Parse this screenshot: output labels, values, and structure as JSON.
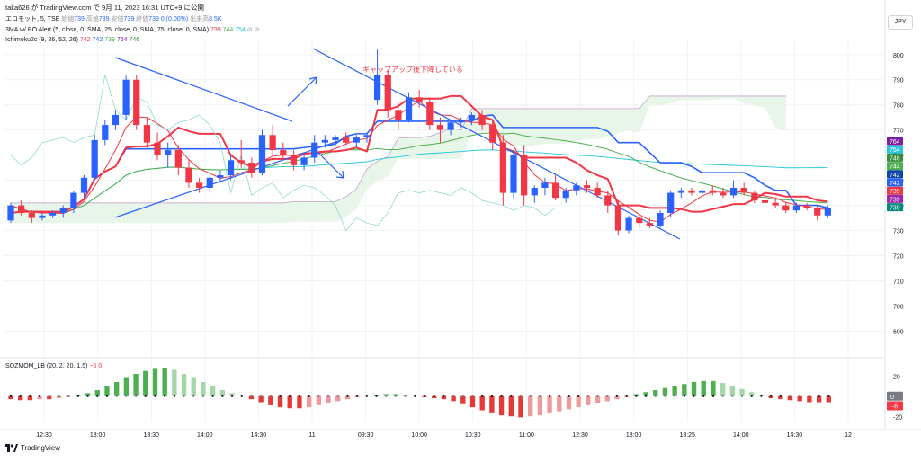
{
  "header": {
    "publish_line": "taka626 が TradingView.com で 9月 11, 2023 16:31 UTC+9 に公開",
    "currency": "JPY"
  },
  "legend": {
    "symbol_line": {
      "name": "エコモット, 5, TSE",
      "open_label": "始値",
      "open": "739",
      "high_label": "高値",
      "high": "739",
      "low_label": "安値",
      "low": "739",
      "close_label": "終値",
      "close": "739",
      "change": "0 (0.00%)",
      "volume_label": "出来高",
      "volume": "8.5K"
    },
    "ma_line": {
      "name": "3MA w/ PO Alert (5, close, 0, SMA, 25, close, 0, SMA, 75, close, 0, SMA)",
      "v1": "739",
      "v2": "744",
      "v3": "754",
      "icons": "⊘ ⊘"
    },
    "ichimoku_line": {
      "name": "Ichimoku2c (9, 26, 52, 26)",
      "v1": "742",
      "v2": "742",
      "v3": "739",
      "v4": "764",
      "v5": "746"
    },
    "sqz_line": {
      "name": "SQZMOM_LB (20, 2, 20, 1.5)",
      "v1": "−6",
      "v2": "0"
    }
  },
  "footer": {
    "brand": "TradingView"
  },
  "colors": {
    "up": "#2962ff",
    "down": "#f23645",
    "ma5": "#f23645",
    "ma25": "#4caf50",
    "ma75": "#26c6da",
    "tenkan": "#f23645",
    "kijun": "#2962ff",
    "chikou": "#4caf50",
    "cloud": "#e8f5e9",
    "mom_up_strong": "#4caf50",
    "mom_up_weak": "#a5d6a7",
    "mom_dn_strong": "#e53935",
    "mom_dn_weak": "#ef9a9a"
  },
  "chart_data": [
    {
      "type": "candlestick",
      "title": "エコモット, 5, TSE",
      "y_axis_ticks": [
        690,
        700,
        710,
        720,
        730,
        740,
        750,
        760,
        770,
        780,
        790,
        800
      ],
      "ylim": [
        683,
        806
      ],
      "x_ticks": [
        "12:30",
        "13:00",
        "13:30",
        "14:00",
        "14:30",
        "11",
        "09:30",
        "10:00",
        "10:30",
        "11:00",
        "12:30",
        "13:00",
        "13:25",
        "14:00",
        "14:30",
        "12"
      ],
      "annotation": "ギャップアップ後下降している",
      "price_labels": [
        {
          "value": "764",
          "color": "#7b1fa2"
        },
        {
          "value": "754",
          "color": "#26c6da"
        },
        {
          "value": "746",
          "color": "#388e3c"
        },
        {
          "value": "744",
          "color": "#4caf50"
        },
        {
          "value": "742",
          "color": "#0d47a1"
        },
        {
          "value": "742",
          "color": "#2962ff"
        },
        {
          "value": "739",
          "color": "#f23645"
        },
        {
          "value": "739",
          "color": "#9c27b0"
        },
        {
          "value": "739",
          "color": "#00897b"
        }
      ],
      "candles": [
        [
          734,
          741,
          733,
          740
        ],
        [
          740,
          742,
          736,
          737
        ],
        [
          737,
          738,
          733,
          735
        ],
        [
          735,
          737,
          734,
          736
        ],
        [
          736,
          738,
          735,
          737
        ],
        [
          737,
          740,
          735,
          739
        ],
        [
          739,
          746,
          737,
          745
        ],
        [
          745,
          752,
          743,
          751
        ],
        [
          751,
          768,
          750,
          766
        ],
        [
          766,
          774,
          764,
          772
        ],
        [
          772,
          778,
          770,
          776
        ],
        [
          776,
          792,
          774,
          790
        ],
        [
          790,
          792,
          770,
          772
        ],
        [
          772,
          775,
          763,
          765
        ],
        [
          765,
          769,
          758,
          760
        ],
        [
          760,
          765,
          755,
          762
        ],
        [
          762,
          764,
          752,
          755
        ],
        [
          755,
          758,
          747,
          749
        ],
        [
          749,
          751,
          745,
          747
        ],
        [
          747,
          752,
          745,
          751
        ],
        [
          751,
          754,
          749,
          752
        ],
        [
          752,
          760,
          750,
          758
        ],
        [
          758,
          766,
          755,
          757
        ],
        [
          757,
          759,
          751,
          753
        ],
        [
          753,
          770,
          752,
          768
        ],
        [
          768,
          772,
          760,
          762
        ],
        [
          762,
          765,
          758,
          760
        ],
        [
          760,
          762,
          754,
          756
        ],
        [
          756,
          760,
          754,
          759
        ],
        [
          759,
          768,
          757,
          765
        ],
        [
          765,
          768,
          763,
          766
        ],
        [
          766,
          768,
          764,
          767
        ],
        [
          767,
          769,
          764,
          765
        ],
        [
          765,
          768,
          763,
          767
        ],
        [
          767,
          769,
          765,
          768
        ],
        [
          782,
          802,
          780,
          792
        ],
        [
          792,
          794,
          775,
          778
        ],
        [
          778,
          781,
          770,
          774
        ],
        [
          774,
          785,
          773,
          783
        ],
        [
          783,
          786,
          779,
          781
        ],
        [
          781,
          783,
          770,
          772
        ],
        [
          772,
          775,
          765,
          770
        ],
        [
          770,
          774,
          768,
          773
        ],
        [
          773,
          775,
          771,
          774
        ],
        [
          774,
          777,
          772,
          776
        ],
        [
          776,
          778,
          770,
          772
        ],
        [
          772,
          774,
          762,
          765
        ],
        [
          765,
          768,
          740,
          745
        ],
        [
          745,
          762,
          743,
          760
        ],
        [
          760,
          764,
          740,
          744
        ],
        [
          744,
          748,
          741,
          747
        ],
        [
          747,
          751,
          744,
          749
        ],
        [
          749,
          752,
          742,
          743
        ],
        [
          743,
          747,
          741,
          746
        ],
        [
          746,
          749,
          744,
          748
        ],
        [
          748,
          750,
          745,
          747
        ],
        [
          747,
          749,
          743,
          744
        ],
        [
          744,
          746,
          737,
          740
        ],
        [
          740,
          742,
          728,
          730
        ],
        [
          730,
          736,
          729,
          735
        ],
        [
          735,
          737,
          731,
          733
        ],
        [
          733,
          735,
          731,
          732
        ],
        [
          732,
          738,
          731,
          737
        ],
        [
          737,
          746,
          735,
          745
        ],
        [
          745,
          747,
          743,
          746
        ],
        [
          746,
          747,
          744,
          745
        ],
        [
          745,
          747,
          744,
          746
        ],
        [
          746,
          748,
          744,
          745
        ],
        [
          745,
          747,
          743,
          744
        ],
        [
          744,
          750,
          743,
          747
        ],
        [
          747,
          749,
          744,
          745
        ],
        [
          745,
          746,
          741,
          742
        ],
        [
          742,
          743,
          740,
          741
        ],
        [
          741,
          743,
          739,
          740
        ],
        [
          740,
          741,
          737,
          738
        ],
        [
          738,
          741,
          737,
          740
        ],
        [
          740,
          741,
          738,
          739
        ],
        [
          739,
          740,
          734,
          736
        ],
        [
          736,
          740,
          735,
          739
        ]
      ]
    },
    {
      "type": "bar",
      "title": "SQZMOM_LB (20, 2, 20, 1.5)",
      "y_axis_ticks": [
        -20,
        0,
        20
      ],
      "ylim": [
        -26,
        30
      ],
      "values": [
        -3,
        -4,
        -4,
        -3,
        -3,
        -2,
        -1,
        1,
        3,
        6,
        10,
        14,
        18,
        22,
        25,
        27,
        28,
        26,
        22,
        18,
        14,
        10,
        6,
        3,
        0,
        -3,
        -6,
        -9,
        -11,
        -12,
        -12,
        -11,
        -9,
        -7,
        -5,
        -3,
        -1,
        0,
        1,
        2,
        2,
        1,
        0,
        -1,
        -2,
        -3,
        -5,
        -8,
        -11,
        -14,
        -17,
        -19,
        -20,
        -21,
        -20,
        -19,
        -17,
        -15,
        -13,
        -11,
        -9,
        -7,
        -5,
        -3,
        -1,
        2,
        4,
        6,
        8,
        10,
        12,
        14,
        15,
        15,
        13,
        10,
        7,
        4,
        1,
        -2,
        -3,
        -4,
        -5,
        -6,
        -6,
        -6
      ]
    }
  ]
}
